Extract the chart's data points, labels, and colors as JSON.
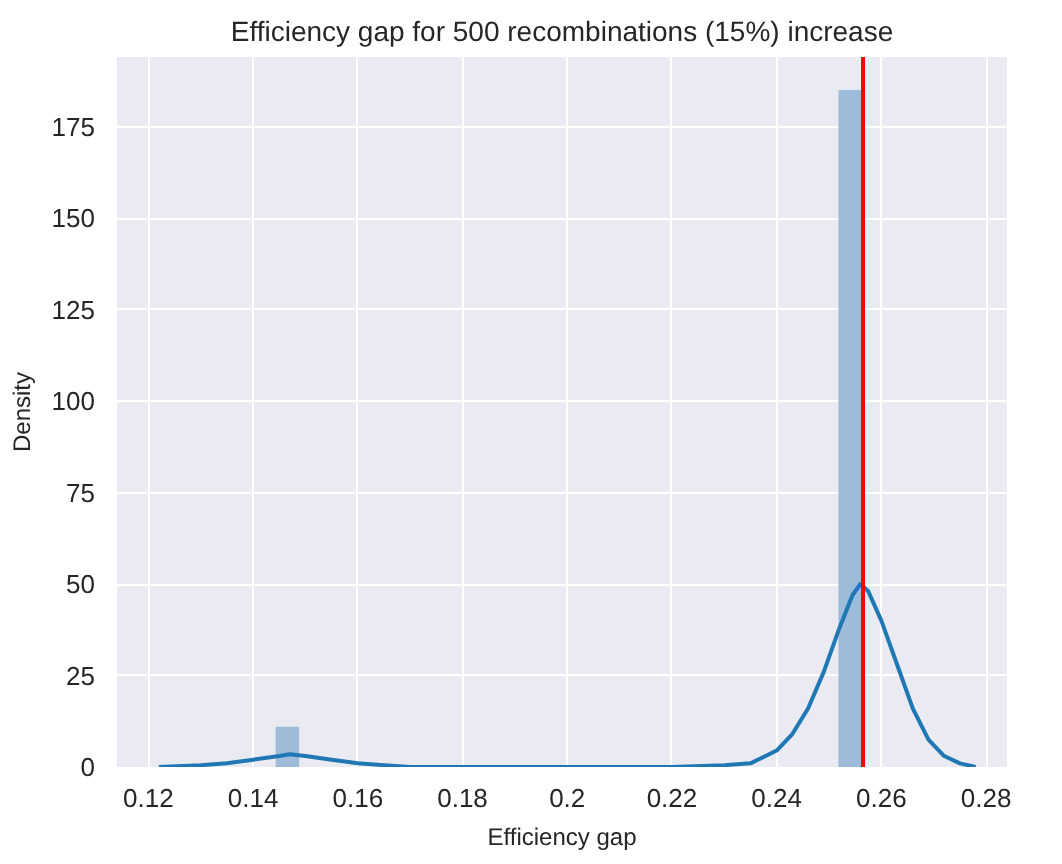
{
  "chart_data": {
    "type": "histogram",
    "title": "Efficiency gap for 500 recombinations (15%) increase",
    "xlabel": "Efficiency gap",
    "ylabel": "Density",
    "series": [
      {
        "color": "#9dbcd9",
        "bins": [
          0.1443,
          0.1488,
          0.2518,
          0.2563
        ],
        "values": [
          11,
          0,
          185
        ]
      },
      {
        "type": "line",
        "color": "#1f77b4",
        "x": [
          0.122,
          0.13,
          0.135,
          0.14,
          0.145,
          0.147,
          0.15,
          0.155,
          0.16,
          0.165,
          0.17,
          0.18,
          0.2,
          0.22,
          0.23,
          0.235,
          0.24,
          0.243,
          0.246,
          0.249,
          0.252,
          0.2545,
          0.256,
          0.2575,
          0.26,
          0.263,
          0.266,
          0.269,
          0.272,
          0.275,
          0.278
        ],
        "values": [
          0,
          0.5,
          1,
          2,
          3,
          3.5,
          3,
          2,
          1,
          0.5,
          0,
          0,
          0,
          0,
          0.5,
          1,
          4.5,
          9,
          16,
          26,
          38,
          47,
          50,
          48,
          40,
          28,
          16,
          7.5,
          3,
          1,
          0
        ]
      }
    ],
    "ref_lines": [
      {
        "axis": "x",
        "value": 0.2565,
        "color": "#ff0000"
      }
    ],
    "xlim": [
      0.114,
      0.284
    ],
    "ylim": [
      0,
      194
    ],
    "xticks": [
      0.12,
      0.14,
      0.16,
      0.18,
      0.2,
      0.22,
      0.24,
      0.26,
      0.28
    ],
    "yticks": [
      0,
      25,
      50,
      75,
      100,
      125,
      150,
      175
    ],
    "grid": true
  }
}
